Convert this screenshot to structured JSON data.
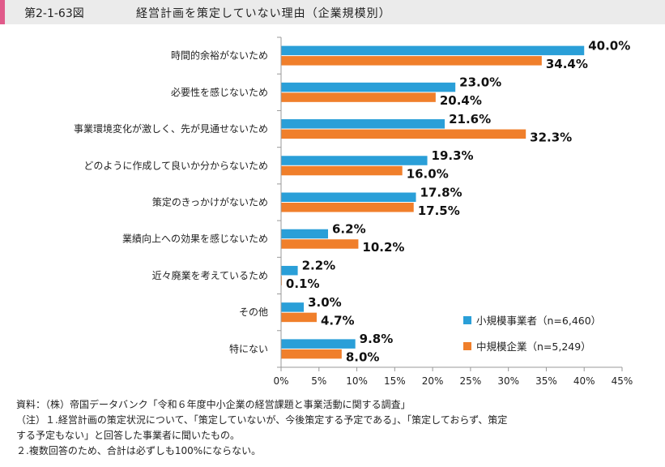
{
  "header": {
    "figure_number": "第2-1-63図",
    "title": "経営計画を策定していない理由（企業規模別）"
  },
  "chart_data": {
    "type": "bar",
    "orientation": "horizontal",
    "categories": [
      "時間的余裕がないため",
      "必要性を感じないため",
      "事業環境変化が激しく、先が見通せないため",
      "どのように作成して良いか分からないため",
      "策定のきっかけがないため",
      "業績向上への効果を感じないため",
      "近々廃業を考えているため",
      "その他",
      "特にない"
    ],
    "series": [
      {
        "name": "小規模事業者（n=6,460）",
        "color": "#2a9fd8",
        "values": [
          40.0,
          23.0,
          21.6,
          19.3,
          17.8,
          6.2,
          2.2,
          3.0,
          9.8
        ],
        "labels": [
          "40.0%",
          "23.0%",
          "21.6%",
          "19.3%",
          "17.8%",
          "6.2%",
          "2.2%",
          "3.0%",
          "9.8%"
        ]
      },
      {
        "name": "中規模企業（n=5,249）",
        "color": "#f07f2b",
        "values": [
          34.4,
          20.4,
          32.3,
          16.0,
          17.5,
          10.2,
          0.1,
          4.7,
          8.0
        ],
        "labels": [
          "34.4%",
          "20.4%",
          "32.3%",
          "16.0%",
          "17.5%",
          "10.2%",
          "0.1%",
          "4.7%",
          "8.0%"
        ]
      }
    ],
    "xlim": [
      0,
      45
    ],
    "xticks": [
      0,
      5,
      10,
      15,
      20,
      25,
      30,
      35,
      40,
      45
    ],
    "xtick_labels": [
      "0%",
      "5%",
      "10%",
      "15%",
      "20%",
      "25%",
      "30%",
      "35%",
      "40%",
      "45%"
    ],
    "grid": false,
    "legend_position": "bottom-right"
  },
  "notes": {
    "source": "資料：（株）帝国データバンク「令和６年度中小企業の経営課題と事業活動に関する調査」",
    "note1_line1": "（注）１.経営計画の策定状況について、「策定していないが、今後策定する予定である」、「策定しておらず、策定",
    "note1_line2": "する予定もない」と回答した事業者に聞いたもの。",
    "note2": "２.複数回答のため、合計は必ずしも100%にならない。"
  }
}
